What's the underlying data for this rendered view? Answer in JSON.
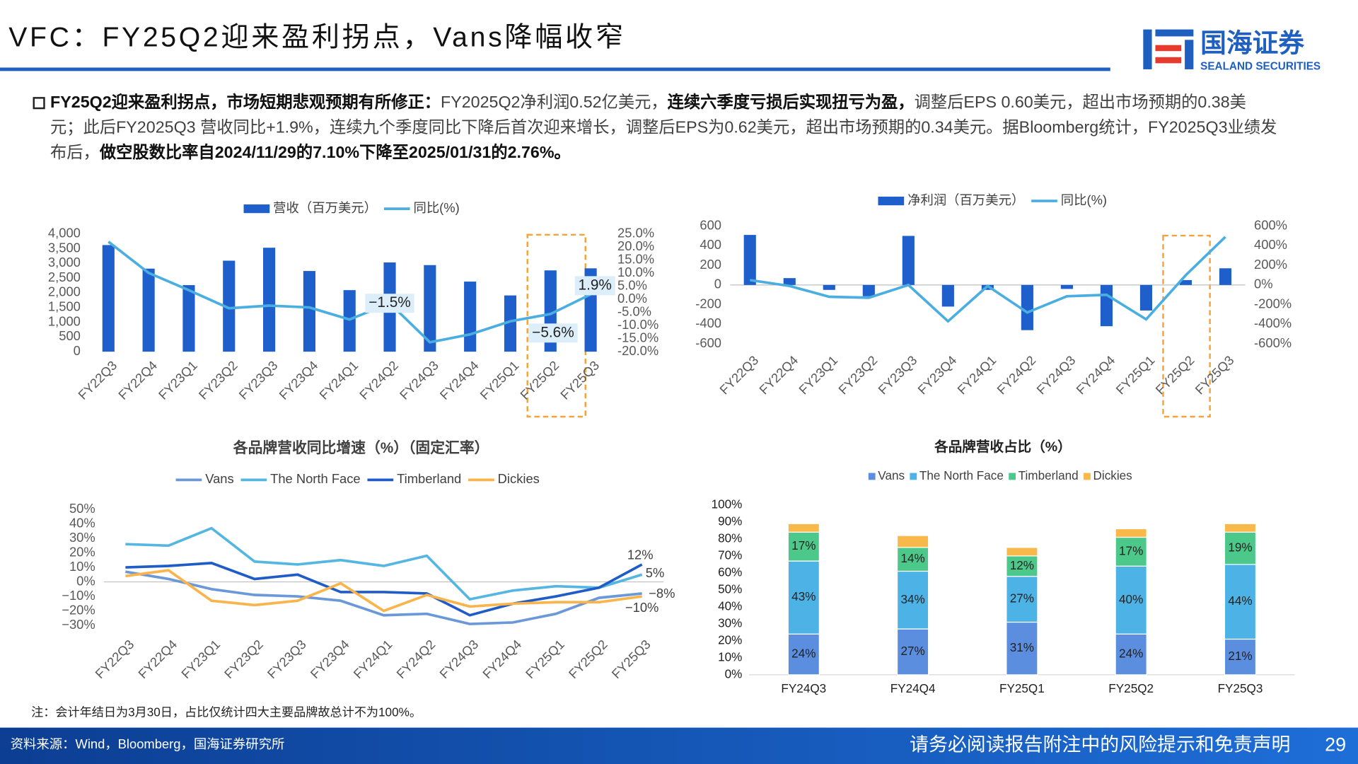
{
  "header": {
    "title": "VFC：FY25Q2迎来盈利拐点，Vans降幅收窄",
    "logo_cn": "国海证券",
    "logo_en": "SEALAND SECURITIES"
  },
  "summary": {
    "segments": [
      {
        "text": "FY25Q2迎来盈利拐点，市场短期悲观预期有所修正：",
        "bold": true
      },
      {
        "text": "FY2025Q2净利润0.52亿美元，",
        "bold": false
      },
      {
        "text": "连续六季度亏损后实现扭亏为盈，",
        "bold": true
      },
      {
        "text": "调整后EPS 0.60美元，超出市场预期的0.38美元；此后FY2025Q3 营收同比+1.9%，连续九个季度同比下降后首次迎来增长，调整后EPS为0.62美元，超出市场预期的0.34美元。据Bloomberg统计，FY2025Q3业绩发布后，",
        "bold": false
      },
      {
        "text": "做空股数比率自2024/11/29的7.10%下降至2025/01/31的2.76%。",
        "bold": true
      }
    ]
  },
  "chart_data": [
    {
      "type": "combo",
      "categories": [
        "FY22Q3",
        "FY22Q4",
        "FY23Q1",
        "FY23Q2",
        "FY23Q3",
        "FY23Q4",
        "FY24Q1",
        "FY24Q2",
        "FY24Q3",
        "FY24Q4",
        "FY25Q1",
        "FY25Q2",
        "FY25Q3"
      ],
      "series": [
        {
          "name": "营收（百万美元）",
          "type": "bar",
          "color": "#1F5FCC",
          "values": [
            3620,
            2820,
            2260,
            3090,
            3530,
            2740,
            2090,
            3030,
            2940,
            2380,
            1910,
            2760,
            2830
          ]
        },
        {
          "name": "同比(%)",
          "type": "line",
          "axis": "y2",
          "color": "#4BAEE0",
          "values": [
            22.0,
            10.1,
            3.5,
            -3.4,
            -2.4,
            -3.1,
            -7.7,
            -1.5,
            -16.4,
            -13.4,
            -8.4,
            -5.6,
            1.9
          ],
          "value_labels": [
            null,
            null,
            null,
            null,
            null,
            null,
            null,
            "−1.5%",
            null,
            null,
            null,
            "−5.6%",
            "1.9%"
          ]
        }
      ],
      "ylim": [
        0,
        4000
      ],
      "yticks": [
        0,
        500,
        {
          "value": 1000,
          "label": "1,000"
        },
        {
          "value": 1500,
          "label": "1,500"
        },
        {
          "value": 2000,
          "label": "2,000"
        },
        {
          "value": 2500,
          "label": "2,500"
        },
        {
          "value": 3000,
          "label": "3,000"
        },
        {
          "value": 3500,
          "label": "3,500"
        },
        {
          "value": 4000,
          "label": "4,000"
        }
      ],
      "y2lim": [
        -20,
        25
      ],
      "y2ticks": [
        {
          "value": -20,
          "label": "-20.0%"
        },
        {
          "value": -15,
          "label": "-15.0%"
        },
        {
          "value": -10,
          "label": "-10.0%"
        },
        {
          "value": -5,
          "label": "-5.0%"
        },
        {
          "value": 0,
          "label": "0.0%"
        },
        {
          "value": 5,
          "label": "5.0%"
        },
        {
          "value": 10,
          "label": "10.0%"
        },
        {
          "value": 15,
          "label": "15.0%"
        },
        {
          "value": 20,
          "label": "20.0%"
        },
        {
          "value": 25,
          "label": "25.0%"
        }
      ]
    },
    {
      "type": "combo",
      "categories": [
        "FY22Q3",
        "FY22Q4",
        "FY23Q1",
        "FY23Q2",
        "FY23Q3",
        "FY23Q4",
        "FY24Q1",
        "FY24Q2",
        "FY24Q3",
        "FY24Q4",
        "FY25Q1",
        "FY25Q2",
        "FY25Q3"
      ],
      "series": [
        {
          "name": "净利润（百万美元）",
          "type": "bar",
          "color": "#1F5FCC",
          "values": [
            510,
            70,
            -50,
            -115,
            500,
            -220,
            -50,
            -460,
            -40,
            -420,
            -260,
            50,
            170
          ]
        },
        {
          "name": "同比(%)",
          "type": "line",
          "axis": "y2",
          "color": "#4BAEE0",
          "values": [
            50,
            -10,
            -120,
            -130,
            0,
            -370,
            -10,
            -280,
            -115,
            -100,
            -350,
            100,
            490
          ]
        }
      ],
      "ylim": [
        -600,
        600
      ],
      "yticks": [
        -600,
        -400,
        -200,
        0,
        200,
        400,
        600
      ],
      "y2lim": [
        -600,
        600
      ],
      "y2ticks": [
        {
          "value": -600,
          "label": "-600%"
        },
        {
          "value": -400,
          "label": "-400%"
        },
        {
          "value": -200,
          "label": "-200%"
        },
        {
          "value": 0,
          "label": "0%"
        },
        {
          "value": 200,
          "label": "200%"
        },
        {
          "value": 400,
          "label": "400%"
        },
        {
          "value": 600,
          "label": "600%"
        }
      ]
    },
    {
      "type": "line",
      "title": "各品牌营收同比增速（%）（固定汇率）",
      "categories": [
        "FY22Q3",
        "FY22Q4",
        "FY23Q1",
        "FY23Q2",
        "FY23Q3",
        "FY23Q4",
        "FY24Q1",
        "FY24Q2",
        "FY24Q3",
        "FY24Q4",
        "FY25Q1",
        "FY25Q2",
        "FY25Q3"
      ],
      "series": [
        {
          "name": "Vans",
          "color": "#6A98D8",
          "values": [
            7,
            2,
            -5,
            -9,
            -10,
            -13,
            -23,
            -22,
            -29,
            -28,
            -22,
            -11,
            -8
          ],
          "value_labels": [
            null,
            null,
            null,
            null,
            null,
            null,
            null,
            null,
            null,
            null,
            null,
            null,
            "−8%"
          ]
        },
        {
          "name": "The North Face",
          "color": "#55B6E2",
          "values": [
            26,
            25,
            37,
            14,
            12,
            15,
            11,
            18,
            -12,
            -6,
            -3,
            -4,
            5
          ],
          "value_labels": [
            null,
            null,
            null,
            null,
            null,
            null,
            null,
            null,
            null,
            null,
            null,
            null,
            "5%"
          ]
        },
        {
          "name": "Timberland",
          "color": "#1F5CC8",
          "values": [
            10,
            11,
            13,
            2,
            5,
            -7,
            -7,
            -8,
            -23,
            -15,
            -10,
            -4,
            12
          ],
          "value_labels": [
            null,
            null,
            null,
            null,
            null,
            null,
            null,
            null,
            null,
            null,
            null,
            null,
            "12%"
          ]
        },
        {
          "name": "Dickies",
          "color": "#F9B44C",
          "values": [
            4,
            8,
            -13,
            -16,
            -13,
            -1,
            -20,
            -9,
            -17,
            -15,
            -14,
            -14,
            -10
          ],
          "value_labels": [
            null,
            null,
            null,
            null,
            null,
            null,
            null,
            null,
            null,
            null,
            null,
            null,
            "−10%"
          ]
        }
      ],
      "ylim": [
        -30,
        50
      ],
      "yticks": [
        {
          "value": -30,
          "label": "−30%"
        },
        {
          "value": -20,
          "label": "−20%"
        },
        {
          "value": -10,
          "label": "−10%"
        },
        {
          "value": 0,
          "label": "0%"
        },
        {
          "value": 10,
          "label": "10%"
        },
        {
          "value": 20,
          "label": "20%"
        },
        {
          "value": 30,
          "label": "30%"
        },
        {
          "value": 40,
          "label": "40%"
        },
        {
          "value": 50,
          "label": "50%"
        }
      ]
    },
    {
      "type": "stacked_bar",
      "title": "各品牌营收占比（%）",
      "categories": [
        "FY24Q3",
        "FY24Q4",
        "FY25Q1",
        "FY25Q2",
        "FY25Q3"
      ],
      "series": [
        {
          "name": "Vans",
          "color": "#5B8EDF",
          "values": [
            24,
            27,
            31,
            24,
            21
          ],
          "value_labels": [
            "24%",
            "27%",
            "31%",
            "24%",
            "21%"
          ]
        },
        {
          "name": "The North Face",
          "color": "#4DB3E6",
          "values": [
            43,
            34,
            27,
            40,
            44
          ],
          "value_labels": [
            "43%",
            "34%",
            "27%",
            "40%",
            "44%"
          ]
        },
        {
          "name": "Timberland",
          "color": "#4CC98A",
          "values": [
            17,
            14,
            12,
            17,
            19
          ],
          "value_labels": [
            "17%",
            "14%",
            "12%",
            "17%",
            "19%"
          ]
        },
        {
          "name": "Dickies",
          "color": "#F9B84A",
          "values": [
            5,
            7,
            5,
            5,
            5
          ]
        }
      ],
      "ylim": [
        0,
        100
      ],
      "yticks": [
        {
          "value": 0,
          "label": "0%"
        },
        {
          "value": 10,
          "label": "10%"
        },
        {
          "value": 20,
          "label": "20%"
        },
        {
          "value": 30,
          "label": "30%"
        },
        {
          "value": 40,
          "label": "40%"
        },
        {
          "value": 50,
          "label": "50%"
        },
        {
          "value": 60,
          "label": "60%"
        },
        {
          "value": 70,
          "label": "70%"
        },
        {
          "value": 80,
          "label": "80%"
        },
        {
          "value": 90,
          "label": "90%"
        },
        {
          "value": 100,
          "label": "100%"
        }
      ]
    }
  ],
  "note": "注：会计年结日为3月30日，占比仅统计四大主要品牌故总计不为100%。",
  "footer": {
    "source": "资料来源：Wind，Bloomberg，国海证券研究所",
    "disclaimer": "请务必阅读报告附注中的风险提示和免责声明",
    "page": "29"
  }
}
